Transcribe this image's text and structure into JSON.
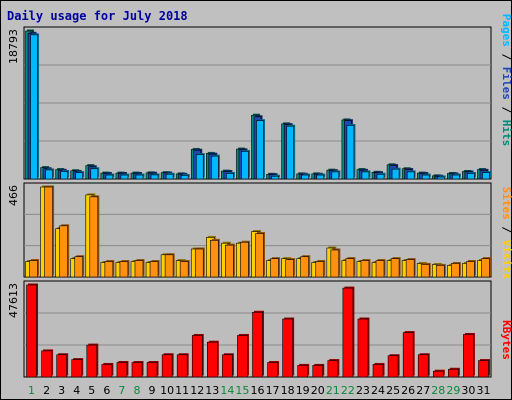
{
  "title": "Daily usage for July 2018",
  "colors": {
    "background": "#c0c0c0",
    "panel_bg": "#bdbdbd",
    "weekend_label": "#0a8a3a",
    "weekday_label": "#000000",
    "pages": "#00b8ff",
    "files": "#1e46b4",
    "hits": "#008c7a",
    "visits": "#ffd000",
    "sites": "#ff9010",
    "kbytes": "#ff0000",
    "title": "#0000a0"
  },
  "chart_data": [
    {
      "type": "bar",
      "name": "top-panel",
      "ymax_label": "18793",
      "ymax": 18793,
      "legend": [
        {
          "text": "Pages",
          "color": "#00b8ff"
        },
        {
          "text": "Files",
          "color": "#1e46b4"
        },
        {
          "text": "Hits",
          "color": "#008c7a"
        }
      ],
      "categories": [
        "1",
        "2",
        "3",
        "4",
        "5",
        "6",
        "7",
        "8",
        "9",
        "10",
        "11",
        "12",
        "13",
        "14",
        "15",
        "16",
        "17",
        "18",
        "19",
        "20",
        "21",
        "22",
        "23",
        "24",
        "25",
        "26",
        "27",
        "28",
        "29",
        "30",
        "31"
      ],
      "series": [
        {
          "name": "Hits",
          "color": "#008c7a",
          "values": [
            18793,
            1450,
            1200,
            1050,
            1700,
            750,
            750,
            750,
            780,
            800,
            650,
            3750,
            3250,
            1000,
            3800,
            8100,
            600,
            7000,
            650,
            650,
            1120,
            7500,
            1200,
            850,
            1800,
            1300,
            750,
            400,
            700,
            950,
            1200
          ]
        },
        {
          "name": "Files",
          "color": "#1e46b4",
          "values": [
            18500,
            1300,
            1100,
            950,
            1550,
            700,
            700,
            700,
            730,
            760,
            600,
            3650,
            3150,
            950,
            3700,
            7900,
            550,
            6900,
            600,
            600,
            1060,
            7400,
            1100,
            800,
            1700,
            1200,
            700,
            350,
            650,
            900,
            1100
          ]
        },
        {
          "name": "Pages",
          "color": "#00b8ff",
          "values": [
            18300,
            1150,
            950,
            800,
            1300,
            500,
            500,
            500,
            520,
            600,
            450,
            3100,
            2900,
            700,
            3500,
            7400,
            350,
            6700,
            500,
            500,
            900,
            6800,
            900,
            600,
            1250,
            900,
            500,
            250,
            500,
            700,
            800
          ]
        }
      ]
    },
    {
      "type": "bar",
      "name": "middle-panel",
      "ymax_label": "466",
      "ymax": 466,
      "legend": [
        {
          "text": "Sites",
          "color": "#ff9010"
        },
        {
          "text": "Visits",
          "color": "#ffd000"
        }
      ],
      "categories": [
        "1",
        "2",
        "3",
        "4",
        "5",
        "6",
        "7",
        "8",
        "9",
        "10",
        "11",
        "12",
        "13",
        "14",
        "15",
        "16",
        "17",
        "18",
        "19",
        "20",
        "21",
        "22",
        "23",
        "24",
        "25",
        "26",
        "27",
        "28",
        "29",
        "30",
        "31"
      ],
      "series": [
        {
          "name": "Visits",
          "color": "#ffd000",
          "values": [
            80,
            466,
            250,
            95,
            425,
            75,
            75,
            80,
            75,
            115,
            85,
            145,
            205,
            175,
            175,
            235,
            85,
            95,
            95,
            75,
            150,
            85,
            80,
            75,
            85,
            85,
            70,
            65,
            60,
            70,
            85
          ]
        },
        {
          "name": "Sites",
          "color": "#ff9010",
          "values": [
            85,
            466,
            265,
            105,
            415,
            80,
            80,
            85,
            80,
            115,
            80,
            145,
            190,
            165,
            180,
            225,
            95,
            90,
            105,
            80,
            140,
            95,
            85,
            85,
            95,
            90,
            65,
            60,
            70,
            80,
            95
          ]
        }
      ]
    },
    {
      "type": "bar",
      "name": "bottom-panel",
      "ymax_label": "47613",
      "ymax": 47613,
      "legend": [
        {
          "text": "KBytes",
          "color": "#ff0000"
        }
      ],
      "categories": [
        "1",
        "2",
        "3",
        "4",
        "5",
        "6",
        "7",
        "8",
        "9",
        "10",
        "11",
        "12",
        "13",
        "14",
        "15",
        "16",
        "17",
        "18",
        "19",
        "20",
        "21",
        "22",
        "23",
        "24",
        "25",
        "26",
        "27",
        "28",
        "29",
        "30",
        "31"
      ],
      "series": [
        {
          "name": "KBytes",
          "color": "#ff0000",
          "values": [
            47613,
            13500,
            11500,
            9000,
            16500,
            6500,
            7500,
            7500,
            7500,
            11500,
            11500,
            21500,
            18000,
            11500,
            21500,
            33500,
            7500,
            30000,
            6000,
            6000,
            8500,
            46000,
            30000,
            6500,
            11000,
            23000,
            11500,
            3000,
            4000,
            22000,
            8500
          ]
        }
      ]
    }
  ],
  "x_labels": [
    {
      "text": "1",
      "weekend": true
    },
    {
      "text": "2",
      "weekend": false
    },
    {
      "text": "3",
      "weekend": false
    },
    {
      "text": "4",
      "weekend": false
    },
    {
      "text": "5",
      "weekend": false
    },
    {
      "text": "6",
      "weekend": false
    },
    {
      "text": "7",
      "weekend": true
    },
    {
      "text": "8",
      "weekend": true
    },
    {
      "text": "9",
      "weekend": false
    },
    {
      "text": "10",
      "weekend": false
    },
    {
      "text": "11",
      "weekend": false
    },
    {
      "text": "12",
      "weekend": false
    },
    {
      "text": "13",
      "weekend": false
    },
    {
      "text": "14",
      "weekend": true
    },
    {
      "text": "15",
      "weekend": true
    },
    {
      "text": "16",
      "weekend": false
    },
    {
      "text": "17",
      "weekend": false
    },
    {
      "text": "18",
      "weekend": false
    },
    {
      "text": "19",
      "weekend": false
    },
    {
      "text": "20",
      "weekend": false
    },
    {
      "text": "21",
      "weekend": true
    },
    {
      "text": "22",
      "weekend": true
    },
    {
      "text": "23",
      "weekend": false
    },
    {
      "text": "24",
      "weekend": false
    },
    {
      "text": "25",
      "weekend": false
    },
    {
      "text": "26",
      "weekend": false
    },
    {
      "text": "27",
      "weekend": false
    },
    {
      "text": "28",
      "weekend": true
    },
    {
      "text": "29",
      "weekend": true
    },
    {
      "text": "30",
      "weekend": false
    },
    {
      "text": "31",
      "weekend": false
    }
  ]
}
